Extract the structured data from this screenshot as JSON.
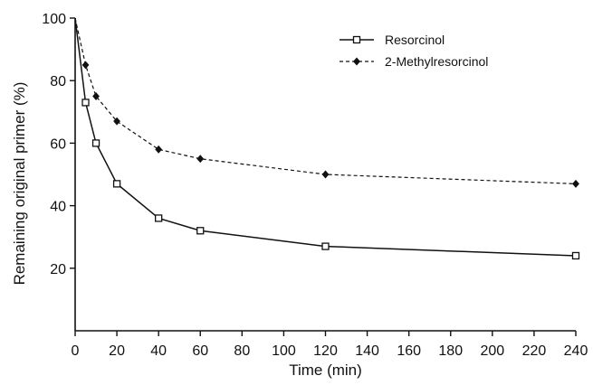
{
  "chart_data": {
    "type": "line",
    "title": "",
    "xlabel": "Time (min)",
    "ylabel": "Remaining original primer (%)",
    "xlim": [
      0,
      240
    ],
    "ylim": [
      0,
      100
    ],
    "xticks": [
      0,
      20,
      40,
      60,
      80,
      100,
      120,
      140,
      160,
      180,
      200,
      220,
      240
    ],
    "yticks": [
      20,
      40,
      60,
      80,
      100
    ],
    "grid": false,
    "legend_position": "top-right",
    "series": [
      {
        "name": "Resorcinol",
        "marker": "open-square",
        "line": "solid",
        "color": "#111111",
        "x": [
          0,
          5,
          10,
          20,
          40,
          60,
          120,
          240
        ],
        "y": [
          100,
          73,
          60,
          47,
          36,
          32,
          27,
          24
        ]
      },
      {
        "name": "2-Methylresorcinol",
        "marker": "filled-diamond",
        "line": "dashed",
        "color": "#111111",
        "x": [
          0,
          5,
          10,
          20,
          40,
          60,
          120,
          240
        ],
        "y": [
          100,
          85,
          75,
          67,
          58,
          55,
          50,
          47
        ]
      }
    ]
  }
}
